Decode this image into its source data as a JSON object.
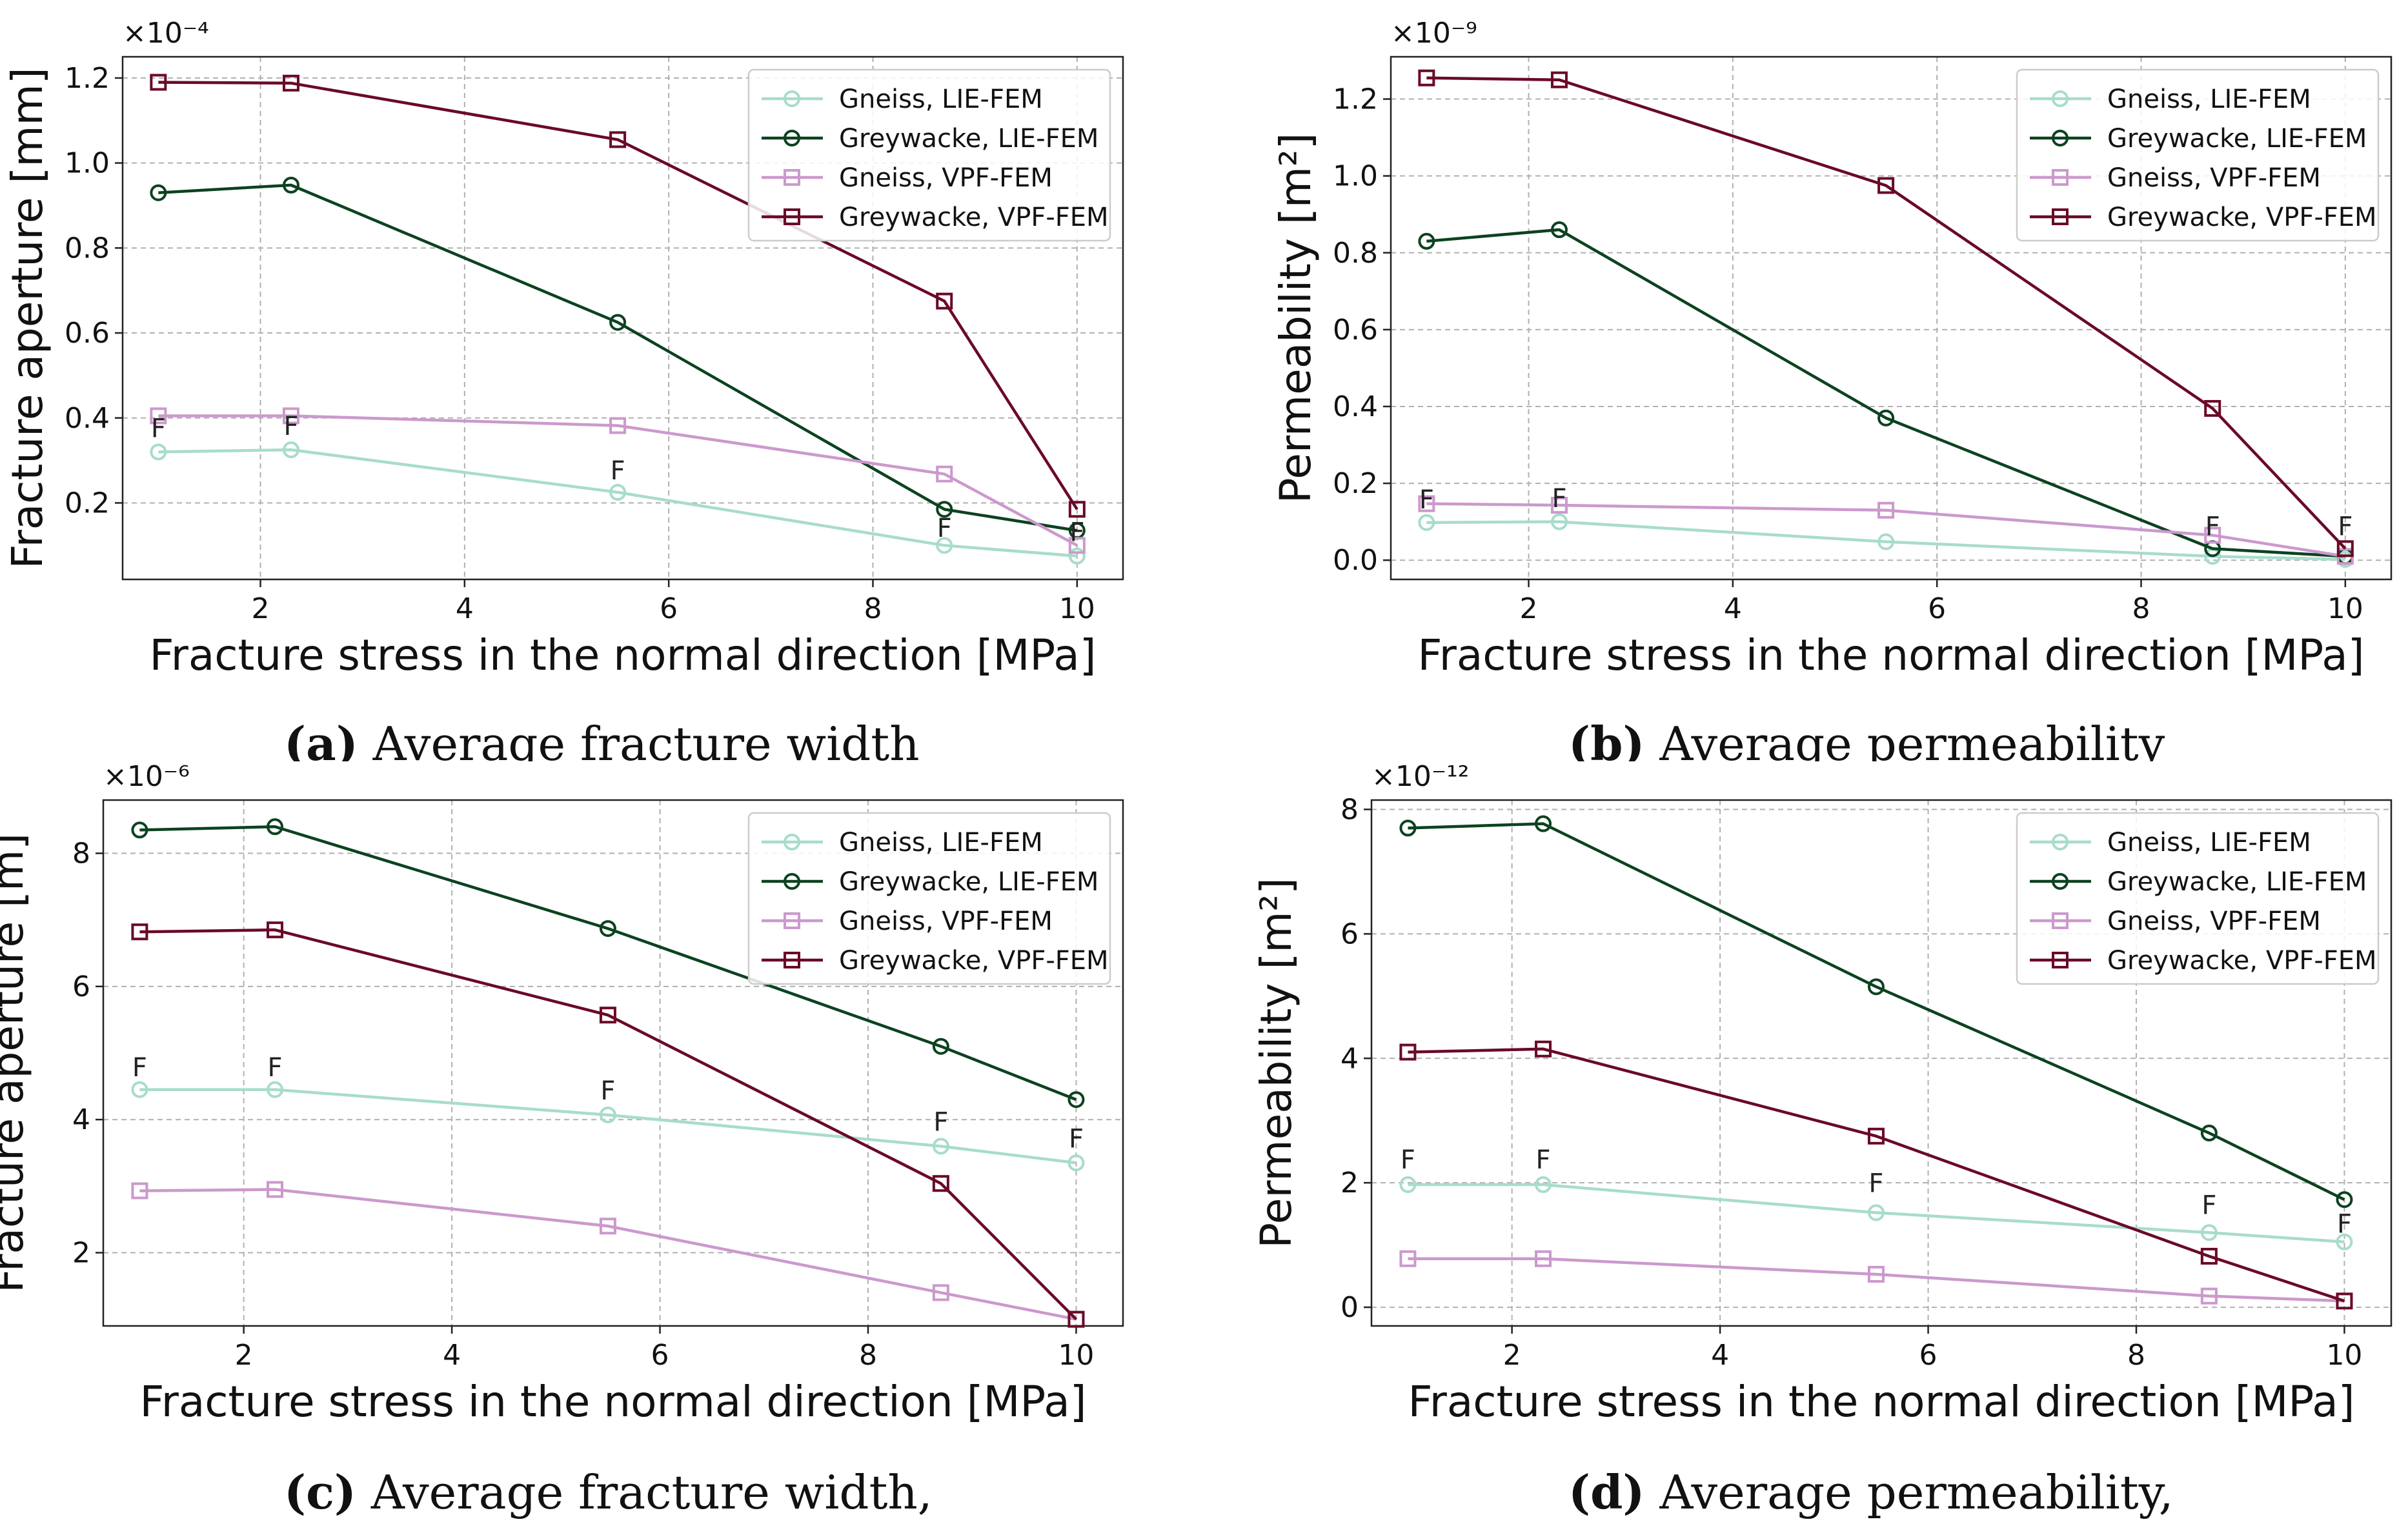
{
  "legend_labels": [
    "Gneiss, LIE-FEM",
    "Greywacke, LIE-FEM",
    "Gneiss, VPF-FEM",
    "Greywacke, VPF-FEM"
  ],
  "series_colors": {
    "gneiss_lie": "#a8dccb",
    "greywacke_lie": "#0c4220",
    "gneiss_vpf": "#cc99cc",
    "greywacke_vpf": "#6a0a26"
  },
  "failure_marker": "F",
  "captions": [
    {
      "label": "(a)",
      "text": " Average fracture width"
    },
    {
      "label": "(b)",
      "text": " Average permeability"
    },
    {
      "label": "(c)",
      "text": " Average fracture width,"
    },
    {
      "label": "(d)",
      "text": " Average permeability,"
    }
  ],
  "chart_data": [
    {
      "type": "line",
      "panel": "a",
      "xlabel": "Fracture stress in the normal direction [MPa]",
      "ylabel": "Fracture aperture [mm]",
      "exponent": "×10⁻⁴",
      "xlim": [
        0.65,
        10.45
      ],
      "ylim": [
        0.02,
        1.25
      ],
      "xticks": [
        2,
        4,
        6,
        8,
        10
      ],
      "yticks": [
        0.2,
        0.4,
        0.6,
        0.8,
        1.0,
        1.2
      ],
      "ytick_labels": [
        "0.2",
        "0.4",
        "0.6",
        "0.8",
        "1.0",
        "1.2"
      ],
      "x": [
        1.0,
        2.3,
        5.5,
        8.7,
        10.0
      ],
      "series": [
        {
          "name": "Gneiss, LIE-FEM",
          "values": [
            0.32,
            0.325,
            0.225,
            0.1,
            0.075
          ]
        },
        {
          "name": "Greywacke, LIE-FEM",
          "values": [
            0.93,
            0.948,
            0.625,
            0.185,
            0.135
          ]
        },
        {
          "name": "Gneiss, VPF-FEM",
          "values": [
            0.405,
            0.405,
            0.382,
            0.268,
            0.1
          ]
        },
        {
          "name": "Greywacke, VPF-FEM",
          "values": [
            1.19,
            1.188,
            1.055,
            0.675,
            0.185
          ]
        }
      ],
      "annotations": [
        {
          "text": "F",
          "x": 1.0,
          "y": 0.355
        },
        {
          "text": "F",
          "x": 2.3,
          "y": 0.36
        },
        {
          "text": "F",
          "x": 5.5,
          "y": 0.255
        },
        {
          "text": "F",
          "x": 8.7,
          "y": 0.12
        },
        {
          "text": "F",
          "x": 10.0,
          "y": 0.11
        }
      ]
    },
    {
      "type": "line",
      "panel": "b",
      "xlabel": "Fracture stress in the normal direction [MPa]",
      "ylabel": "Permeability [m²]",
      "exponent": "×10⁻⁹",
      "xlim": [
        0.65,
        10.45
      ],
      "ylim": [
        -0.05,
        1.31
      ],
      "xticks": [
        2,
        4,
        6,
        8,
        10
      ],
      "yticks": [
        0.0,
        0.2,
        0.4,
        0.6,
        0.8,
        1.0,
        1.2
      ],
      "ytick_labels": [
        "0.0",
        "0.2",
        "0.4",
        "0.6",
        "0.8",
        "1.0",
        "1.2"
      ],
      "x": [
        1.0,
        2.3,
        5.5,
        8.7,
        10.0
      ],
      "series": [
        {
          "name": "Gneiss, LIE-FEM",
          "values": [
            0.098,
            0.1,
            0.048,
            0.01,
            0.002
          ]
        },
        {
          "name": "Greywacke, LIE-FEM",
          "values": [
            0.83,
            0.86,
            0.37,
            0.03,
            0.01
          ]
        },
        {
          "name": "Gneiss, VPF-FEM",
          "values": [
            0.147,
            0.143,
            0.13,
            0.065,
            0.01
          ]
        },
        {
          "name": "Greywacke, VPF-FEM",
          "values": [
            1.255,
            1.25,
            0.975,
            0.395,
            0.03
          ]
        }
      ],
      "annotations": [
        {
          "text": "F",
          "x": 1.0,
          "y": 0.135
        },
        {
          "text": "F",
          "x": 2.3,
          "y": 0.138
        },
        {
          "text": "F",
          "x": 8.7,
          "y": 0.065
        },
        {
          "text": "F",
          "x": 10.0,
          "y": 0.065
        }
      ]
    },
    {
      "type": "line",
      "panel": "c",
      "xlabel": "Fracture stress in the normal direction [MPa]",
      "ylabel": "Fracture aperture [m]",
      "exponent": "×10⁻⁶",
      "xlim": [
        0.65,
        10.45
      ],
      "ylim": [
        0.9,
        8.8
      ],
      "xticks": [
        2,
        4,
        6,
        8,
        10
      ],
      "yticks": [
        2,
        4,
        6,
        8
      ],
      "ytick_labels": [
        "2",
        "4",
        "6",
        "8"
      ],
      "x": [
        1.0,
        2.3,
        5.5,
        8.7,
        10.0
      ],
      "series": [
        {
          "name": "Gneiss, LIE-FEM",
          "values": [
            4.45,
            4.45,
            4.07,
            3.6,
            3.35
          ]
        },
        {
          "name": "Greywacke, LIE-FEM",
          "values": [
            8.35,
            8.4,
            6.87,
            5.1,
            4.3
          ]
        },
        {
          "name": "Gneiss, VPF-FEM",
          "values": [
            2.93,
            2.95,
            2.4,
            1.4,
            1.0
          ]
        },
        {
          "name": "Greywacke, VPF-FEM",
          "values": [
            6.82,
            6.85,
            5.57,
            3.04,
            1.0
          ]
        }
      ],
      "annotations": [
        {
          "text": "F",
          "x": 1.0,
          "y": 4.65
        },
        {
          "text": "F",
          "x": 2.3,
          "y": 4.65
        },
        {
          "text": "F",
          "x": 5.5,
          "y": 4.3
        },
        {
          "text": "F",
          "x": 8.7,
          "y": 3.83
        },
        {
          "text": "F",
          "x": 10.0,
          "y": 3.58
        }
      ]
    },
    {
      "type": "line",
      "panel": "d",
      "xlabel": "Fracture stress in the normal direction [MPa]",
      "ylabel": "Permeability [m²]",
      "exponent": "×10⁻¹²",
      "xlim": [
        0.65,
        10.45
      ],
      "ylim": [
        -0.3,
        8.15
      ],
      "xticks": [
        2,
        4,
        6,
        8,
        10
      ],
      "yticks": [
        0,
        2,
        4,
        6,
        8
      ],
      "ytick_labels": [
        "0",
        "2",
        "4",
        "6",
        "8"
      ],
      "x": [
        1.0,
        2.3,
        5.5,
        8.7,
        10.0
      ],
      "series": [
        {
          "name": "Gneiss, LIE-FEM",
          "values": [
            1.97,
            1.97,
            1.52,
            1.2,
            1.05
          ]
        },
        {
          "name": "Greywacke, LIE-FEM",
          "values": [
            7.7,
            7.77,
            5.15,
            2.8,
            1.73
          ]
        },
        {
          "name": "Gneiss, VPF-FEM",
          "values": [
            0.78,
            0.78,
            0.53,
            0.18,
            0.1
          ]
        },
        {
          "name": "Greywacke, VPF-FEM",
          "values": [
            4.1,
            4.15,
            2.75,
            0.82,
            0.1
          ]
        }
      ],
      "annotations": [
        {
          "text": "F",
          "x": 1.0,
          "y": 2.23
        },
        {
          "text": "F",
          "x": 2.3,
          "y": 2.23
        },
        {
          "text": "F",
          "x": 5.5,
          "y": 1.85
        },
        {
          "text": "F",
          "x": 8.7,
          "y": 1.5
        },
        {
          "text": "F",
          "x": 10.0,
          "y": 1.2
        }
      ]
    }
  ]
}
